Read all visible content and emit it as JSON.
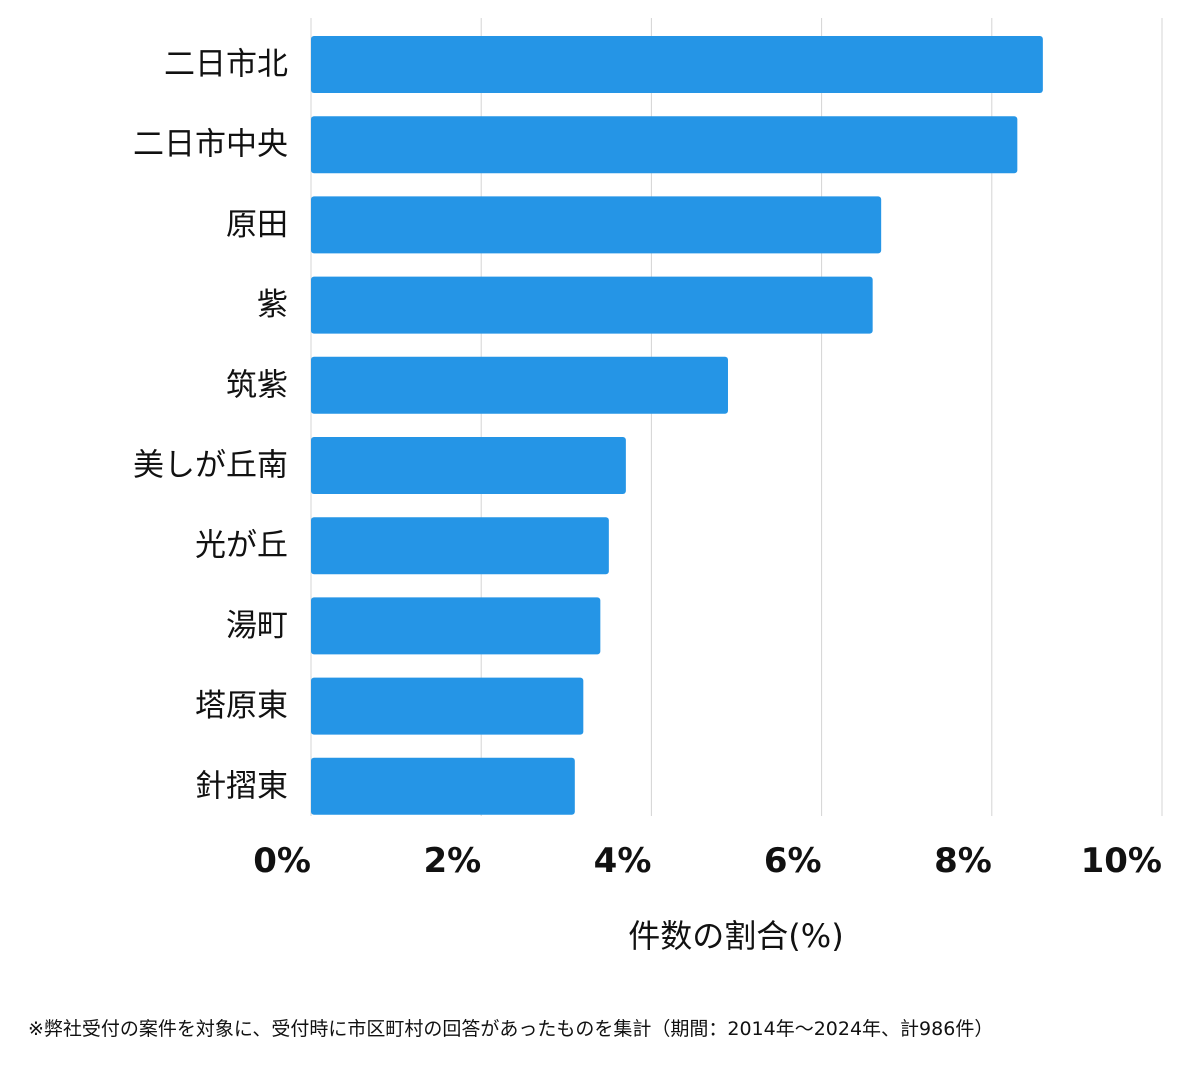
{
  "chart_data": {
    "type": "bar",
    "orientation": "horizontal",
    "categories": [
      "二日市北",
      "二日市中央",
      "原田",
      "紫",
      "筑紫",
      "美しが丘南",
      "光が丘",
      "湯町",
      "塔原東",
      "針摺東"
    ],
    "values": [
      8.6,
      8.3,
      6.7,
      6.6,
      4.9,
      3.7,
      3.5,
      3.4,
      3.2,
      3.1
    ],
    "xlabel": "件数の割合(%)",
    "xlim": [
      0,
      10
    ],
    "xticks": [
      0,
      2,
      4,
      6,
      8,
      10
    ],
    "xtick_labels": [
      "0%",
      "2%",
      "4%",
      "6%",
      "8%",
      "10%"
    ],
    "grid": true,
    "bar_color": "#2595e6"
  },
  "footnote": "※弊社受付の案件を対象に、受付時に市区町村の回答があったものを集計（期間：2014年～2024年、計986件）"
}
